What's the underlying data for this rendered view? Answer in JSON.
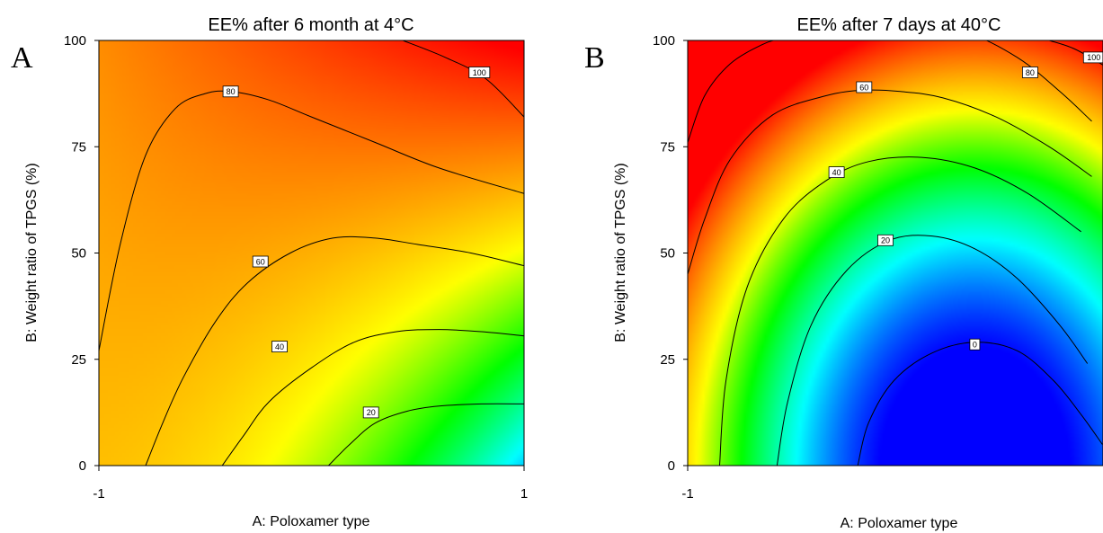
{
  "chart_data": [
    {
      "panel_letter": "A",
      "type": "contour",
      "title": "EE% after 6 month at 4°C",
      "xlabel": "A: Poloxamer type",
      "ylabel": "B: Weight ratio of TPGS (%)",
      "xlim": [
        -1,
        1
      ],
      "ylim": [
        0,
        100
      ],
      "x_ticks": [
        "-1",
        "1"
      ],
      "y_ticks": [
        "0",
        "25",
        "50",
        "75",
        "100"
      ],
      "colorscale": [
        "#0000ff",
        "#00ffff",
        "#00ff00",
        "#ffff00",
        "#ff8000",
        "#ff0000"
      ],
      "contours": [
        {
          "level": 100,
          "label": "100",
          "label_at": [
            0.79,
            92.5
          ],
          "points": [
            [
              0.43,
              100
            ],
            [
              0.63,
              96
            ],
            [
              0.82,
              91
            ],
            [
              1.0,
              82
            ]
          ]
        },
        {
          "level": 80,
          "label": "80",
          "label_at": [
            -0.38,
            88
          ],
          "points": [
            [
              -1.0,
              27
            ],
            [
              -0.9,
              52
            ],
            [
              -0.78,
              73
            ],
            [
              -0.64,
              84
            ],
            [
              -0.5,
              87.5
            ],
            [
              -0.38,
              88
            ],
            [
              -0.2,
              86
            ],
            [
              0.0,
              82
            ],
            [
              0.3,
              76
            ],
            [
              0.6,
              70
            ],
            [
              1.0,
              64
            ]
          ]
        },
        {
          "level": 60,
          "label": "60",
          "label_at": [
            -0.24,
            48
          ],
          "points": [
            [
              -0.78,
              0
            ],
            [
              -0.7,
              10
            ],
            [
              -0.6,
              21
            ],
            [
              -0.45,
              34
            ],
            [
              -0.3,
              43
            ],
            [
              -0.1,
              50
            ],
            [
              0.1,
              53.5
            ],
            [
              0.3,
              53.5
            ],
            [
              0.5,
              52
            ],
            [
              0.75,
              50
            ],
            [
              1.0,
              47
            ]
          ]
        },
        {
          "level": 40,
          "label": "40",
          "label_at": [
            -0.15,
            28
          ],
          "points": [
            [
              -0.42,
              0
            ],
            [
              -0.32,
              7
            ],
            [
              -0.2,
              15
            ],
            [
              0.0,
              23
            ],
            [
              0.2,
              29
            ],
            [
              0.4,
              31.5
            ],
            [
              0.6,
              32
            ],
            [
              0.8,
              31.5
            ],
            [
              1.0,
              30.5
            ]
          ]
        },
        {
          "level": 20,
          "label": "20",
          "label_at": [
            0.28,
            12.5
          ],
          "points": [
            [
              0.08,
              0
            ],
            [
              0.18,
              5
            ],
            [
              0.3,
              10
            ],
            [
              0.45,
              12.8
            ],
            [
              0.6,
              14
            ],
            [
              0.8,
              14.5
            ],
            [
              1.0,
              14.5
            ]
          ]
        }
      ]
    },
    {
      "panel_letter": "B",
      "type": "contour",
      "title": "EE% after 7 days at 40°C",
      "xlabel": "A: Poloxamer type",
      "ylabel": "B: Weight ratio of TPGS (%)",
      "xlim": [
        -1,
        1
      ],
      "ylim": [
        0,
        100
      ],
      "x_ticks": [
        "-1"
      ],
      "y_ticks": [
        "0",
        "25",
        "50",
        "75",
        "100"
      ],
      "colorscale": [
        "#0000ff",
        "#00ffff",
        "#00ff00",
        "#ffff00",
        "#ff8000",
        "#ff0000"
      ],
      "contours": [
        {
          "level": 100,
          "label": "100",
          "label_at": [
            0.91,
            96
          ],
          "points": [
            [
              0.7,
              100
            ],
            [
              0.82,
              98
            ],
            [
              0.96,
              94
            ]
          ]
        },
        {
          "level": 80,
          "label": "80",
          "label_at": [
            0.61,
            92.5
          ],
          "points": [
            [
              -1.0,
              76
            ],
            [
              -0.92,
              87
            ],
            [
              -0.8,
              94.5
            ],
            [
              -0.65,
              99
            ],
            [
              -0.55,
              100.5
            ],
            [
              -0.3,
              103
            ],
            [
              0.0,
              104
            ],
            [
              0.3,
              102
            ],
            [
              0.55,
              96
            ],
            [
              0.75,
              88
            ],
            [
              0.9,
              81
            ]
          ]
        },
        {
          "level": 60,
          "label": "60",
          "label_at": [
            -0.17,
            89
          ],
          "points": [
            [
              -1.0,
              45
            ],
            [
              -0.92,
              58
            ],
            [
              -0.8,
              72
            ],
            [
              -0.6,
              82.5
            ],
            [
              -0.35,
              87
            ],
            [
              -0.17,
              88.3
            ],
            [
              0.0,
              88
            ],
            [
              0.2,
              86.5
            ],
            [
              0.45,
              82
            ],
            [
              0.7,
              75
            ],
            [
              0.9,
              68
            ]
          ]
        },
        {
          "level": 40,
          "label": "40",
          "label_at": [
            -0.3,
            69
          ],
          "points": [
            [
              -0.85,
              0
            ],
            [
              -0.82,
              20
            ],
            [
              -0.72,
              42
            ],
            [
              -0.55,
              58
            ],
            [
              -0.35,
              67
            ],
            [
              -0.15,
              71.5
            ],
            [
              0.1,
              72.5
            ],
            [
              0.35,
              70
            ],
            [
              0.6,
              64
            ],
            [
              0.85,
              55
            ]
          ]
        },
        {
          "level": 20,
          "label": "20",
          "label_at": [
            -0.07,
            53
          ],
          "points": [
            [
              -0.58,
              0
            ],
            [
              -0.53,
              15
            ],
            [
              -0.42,
              33
            ],
            [
              -0.25,
              46
            ],
            [
              -0.05,
              53
            ],
            [
              0.15,
              54
            ],
            [
              0.35,
              51
            ],
            [
              0.55,
              44
            ],
            [
              0.75,
              33
            ],
            [
              0.88,
              24
            ]
          ]
        },
        {
          "level": 0,
          "label": "0",
          "label_at": [
            0.35,
            28.5
          ],
          "points": [
            [
              -0.2,
              0
            ],
            [
              -0.15,
              10
            ],
            [
              -0.03,
              20
            ],
            [
              0.15,
              26.5
            ],
            [
              0.35,
              29
            ],
            [
              0.55,
              27
            ],
            [
              0.72,
              20
            ],
            [
              0.85,
              12
            ],
            [
              0.95,
              5
            ]
          ]
        }
      ]
    }
  ]
}
